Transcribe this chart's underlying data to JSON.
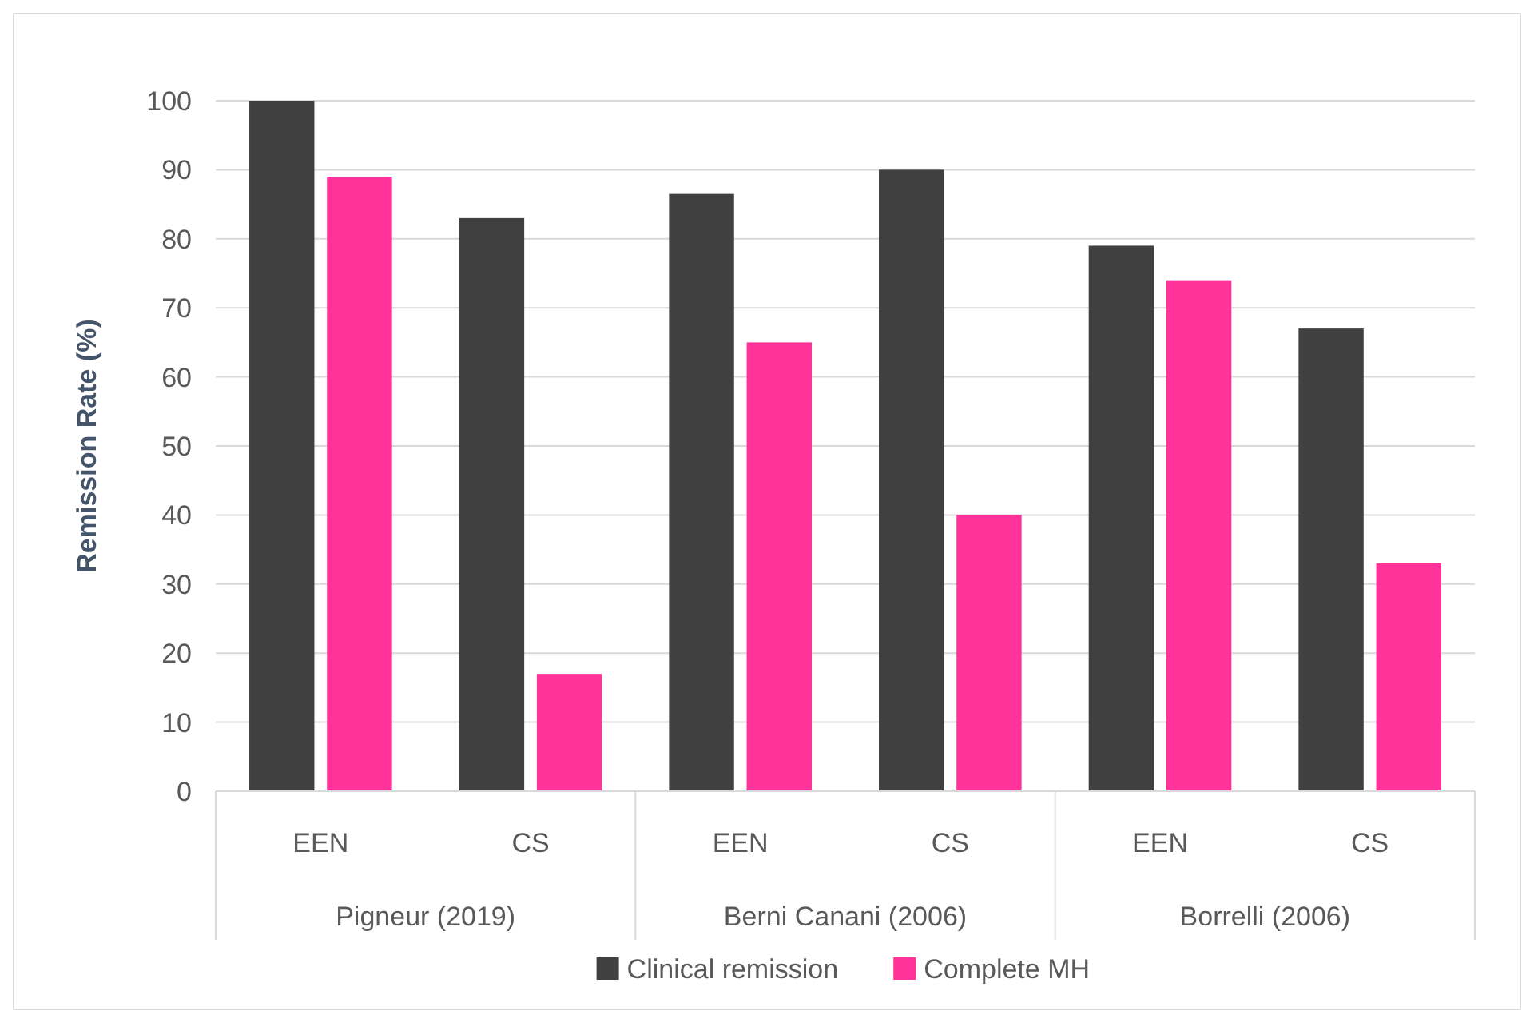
{
  "chart_data": {
    "type": "bar",
    "ylabel": "Remission Rate (%)",
    "categories": [
      "EEN",
      "CS",
      "EEN",
      "CS",
      "EEN",
      "CS"
    ],
    "series": [
      {
        "name": "Clinical remission",
        "color": "#404040",
        "values": [
          100,
          83,
          86.5,
          90,
          79,
          67
        ]
      },
      {
        "name": "Complete MH",
        "color": "#ff3399",
        "values": [
          89,
          17,
          65,
          40,
          74,
          33
        ]
      }
    ],
    "ylim": [
      0,
      100
    ],
    "yticks": [
      0,
      10,
      20,
      30,
      40,
      50,
      60,
      70,
      80,
      90,
      100
    ],
    "grid": "y",
    "legend": "bottom",
    "annotations": [
      "Pigneur (2019)",
      "Berni Canani (2006)",
      "Borrelli (2006)"
    ]
  }
}
